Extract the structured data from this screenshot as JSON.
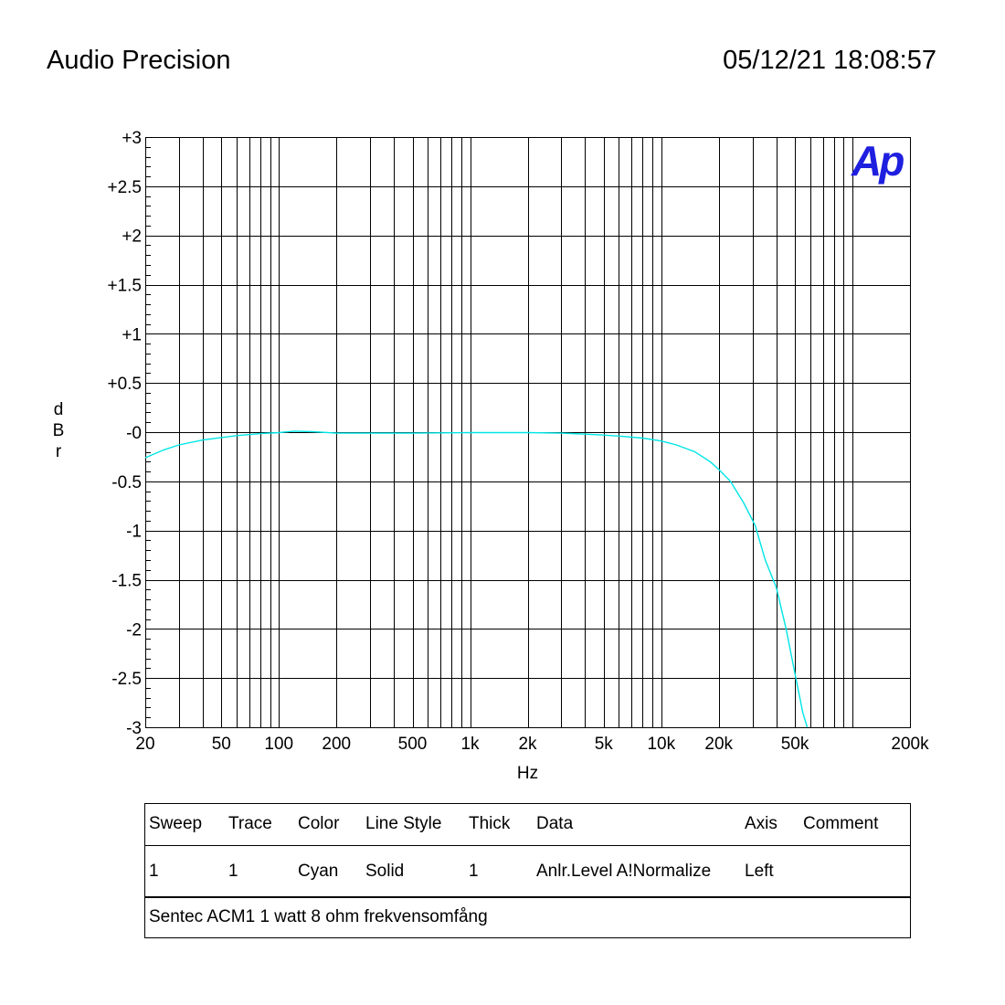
{
  "header": {
    "app_title": "Audio Precision",
    "timestamp": "05/12/21 18:08:57"
  },
  "logo": {
    "text": "Ap",
    "color": "#1f1fe0"
  },
  "chart_data": {
    "type": "line",
    "title": "",
    "xlabel": "Hz",
    "ylabel": "dBr",
    "x_scale": "log",
    "xlim": [
      20,
      200000
    ],
    "ylim": [
      -3,
      3
    ],
    "x_ticks": [
      {
        "value": 20,
        "label": "20"
      },
      {
        "value": 50,
        "label": "50"
      },
      {
        "value": 100,
        "label": "100"
      },
      {
        "value": 200,
        "label": "200"
      },
      {
        "value": 500,
        "label": "500"
      },
      {
        "value": 1000,
        "label": "1k"
      },
      {
        "value": 2000,
        "label": "2k"
      },
      {
        "value": 5000,
        "label": "5k"
      },
      {
        "value": 10000,
        "label": "10k"
      },
      {
        "value": 20000,
        "label": "20k"
      },
      {
        "value": 50000,
        "label": "50k"
      },
      {
        "value": 200000,
        "label": "200k"
      }
    ],
    "y_ticks": [
      {
        "value": 3,
        "label": "+3"
      },
      {
        "value": 2.5,
        "label": "+2.5"
      },
      {
        "value": 2,
        "label": "+2"
      },
      {
        "value": 1.5,
        "label": "+1.5"
      },
      {
        "value": 1,
        "label": "+1"
      },
      {
        "value": 0.5,
        "label": "+0.5"
      },
      {
        "value": 0,
        "label": "-0"
      },
      {
        "value": -0.5,
        "label": "-0.5"
      },
      {
        "value": -1,
        "label": "-1"
      },
      {
        "value": -1.5,
        "label": "-1.5"
      },
      {
        "value": -2,
        "label": "-2"
      },
      {
        "value": -2.5,
        "label": "-2.5"
      },
      {
        "value": -3,
        "label": "-3"
      }
    ],
    "grid": true,
    "series": [
      {
        "color": "#00e5e5",
        "points": [
          [
            20,
            -0.26
          ],
          [
            25,
            -0.18
          ],
          [
            30,
            -0.13
          ],
          [
            40,
            -0.08
          ],
          [
            50,
            -0.055
          ],
          [
            60,
            -0.035
          ],
          [
            80,
            -0.015
          ],
          [
            100,
            -0.005
          ],
          [
            120,
            0.01
          ],
          [
            150,
            0.005
          ],
          [
            200,
            -0.01
          ],
          [
            300,
            -0.01
          ],
          [
            500,
            -0.01
          ],
          [
            1000,
            -0.005
          ],
          [
            2000,
            -0.005
          ],
          [
            3000,
            -0.01
          ],
          [
            4000,
            -0.02
          ],
          [
            5000,
            -0.03
          ],
          [
            6000,
            -0.04
          ],
          [
            8000,
            -0.06
          ],
          [
            10000,
            -0.09
          ],
          [
            12000,
            -0.13
          ],
          [
            15000,
            -0.2
          ],
          [
            18000,
            -0.3
          ],
          [
            20000,
            -0.38
          ],
          [
            23000,
            -0.5
          ],
          [
            27000,
            -0.72
          ],
          [
            31000,
            -0.95
          ],
          [
            35000,
            -1.3
          ],
          [
            40000,
            -1.58
          ],
          [
            45000,
            -2.0
          ],
          [
            50000,
            -2.45
          ],
          [
            55000,
            -2.85
          ],
          [
            58000,
            -3.0
          ]
        ]
      }
    ]
  },
  "legend": {
    "columns": [
      "Sweep",
      "Trace",
      "Color",
      "Line Style",
      "Thick",
      "Data",
      "Axis",
      "Comment"
    ],
    "rows": [
      [
        "1",
        "1",
        "Cyan",
        "Solid",
        "1",
        "Anlr.Level A!Normalize",
        "Left",
        ""
      ]
    ],
    "comment": "Sentec ACM1 1 watt 8 ohm frekvensomfång"
  }
}
